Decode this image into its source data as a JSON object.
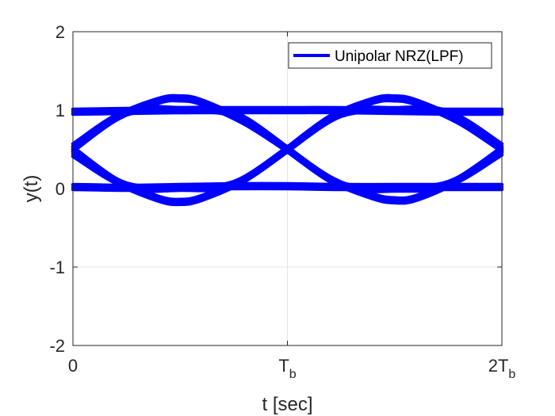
{
  "chart_data": {
    "type": "line",
    "title": "",
    "xlabel": "t [sec]",
    "ylabel": "y(t)",
    "xlim": [
      0,
      2
    ],
    "ylim": [
      -2,
      2
    ],
    "grid": true,
    "legend_position": "top-right",
    "x_ticks": [
      {
        "value": 0,
        "label": "0",
        "sub": ""
      },
      {
        "value": 1,
        "label": "T",
        "sub": "b"
      },
      {
        "value": 2,
        "label": "2T",
        "sub": "b"
      }
    ],
    "y_ticks": [
      {
        "value": 2,
        "label": "2"
      },
      {
        "value": 1,
        "label": "1"
      },
      {
        "value": 0,
        "label": "0"
      },
      {
        "value": -1,
        "label": "-1"
      },
      {
        "value": -2,
        "label": "-2"
      }
    ],
    "series": [
      {
        "name": "Unipolar NRZ(LPF)",
        "color": "#0000ff",
        "traces": [
          {
            "x": [
              0,
              0.25,
              0.5,
              0.75,
              1,
              1.25,
              1.5,
              1.75,
              2
            ],
            "y": [
              0.98,
              0.99,
              1.0,
              1.0,
              1.0,
              1.0,
              0.99,
              0.98,
              0.98
            ]
          },
          {
            "x": [
              0,
              0.25,
              0.5,
              0.75,
              1,
              1.25,
              1.5,
              1.75,
              2
            ],
            "y": [
              0.02,
              0.01,
              0.02,
              0.03,
              0.03,
              0.02,
              0.02,
              0.02,
              0.02
            ]
          },
          {
            "x": [
              0,
              0.2,
              0.4,
              0.5,
              0.6,
              0.8,
              1
            ],
            "y": [
              0.5,
              0.9,
              1.12,
              1.15,
              1.1,
              0.85,
              0.5
            ]
          },
          {
            "x": [
              0,
              0.2,
              0.4,
              0.5,
              0.6,
              0.8,
              1
            ],
            "y": [
              0.5,
              0.1,
              -0.13,
              -0.17,
              -0.12,
              0.12,
              0.5
            ]
          },
          {
            "x": [
              1,
              1.2,
              1.4,
              1.5,
              1.6,
              1.8,
              2
            ],
            "y": [
              0.5,
              0.9,
              1.12,
              1.15,
              1.1,
              0.86,
              0.5
            ]
          },
          {
            "x": [
              1,
              1.2,
              1.4,
              1.5,
              1.6,
              1.8,
              2
            ],
            "y": [
              0.5,
              0.12,
              -0.1,
              -0.15,
              -0.12,
              0.12,
              0.5
            ]
          },
          {
            "x": [
              0,
              0.25,
              0.5,
              0.75,
              1
            ],
            "y": [
              0.44,
              0.04,
              0.01,
              0.06,
              0.5
            ]
          },
          {
            "x": [
              0,
              0.25,
              0.5,
              0.75,
              1
            ],
            "y": [
              0.54,
              0.97,
              1.0,
              0.95,
              0.5
            ]
          },
          {
            "x": [
              1,
              1.25,
              1.5,
              1.75,
              2
            ],
            "y": [
              0.5,
              0.95,
              1.0,
              0.96,
              0.54
            ]
          },
          {
            "x": [
              1,
              1.25,
              1.5,
              1.75,
              2
            ],
            "y": [
              0.5,
              0.05,
              0.0,
              0.06,
              0.46
            ]
          }
        ]
      }
    ]
  }
}
